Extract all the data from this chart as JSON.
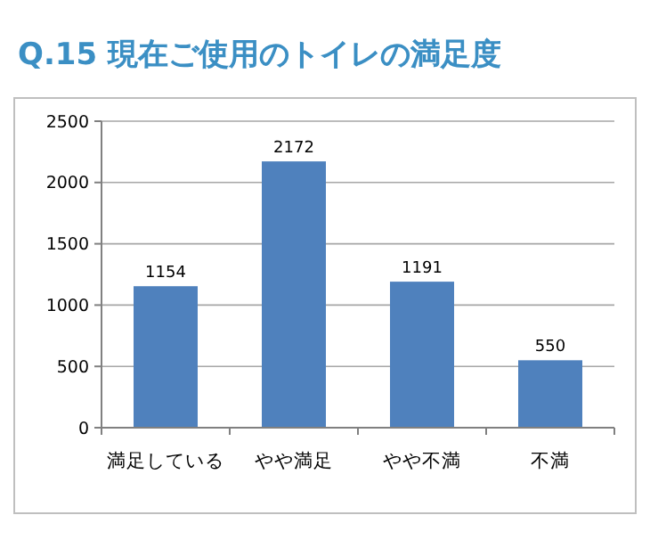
{
  "chart_data": {
    "type": "bar",
    "title": "Q.15 現在ご使用のトイレの満足度",
    "categories": [
      "満足している",
      "やや満足",
      "やや不満",
      "不満"
    ],
    "values": [
      1154,
      2172,
      1191,
      550
    ],
    "color": "#4f81bd",
    "ylim": [
      0,
      2500
    ],
    "yticks": [
      0,
      500,
      1000,
      1500,
      2000,
      2500
    ],
    "grid": "y",
    "data_labels": true
  }
}
